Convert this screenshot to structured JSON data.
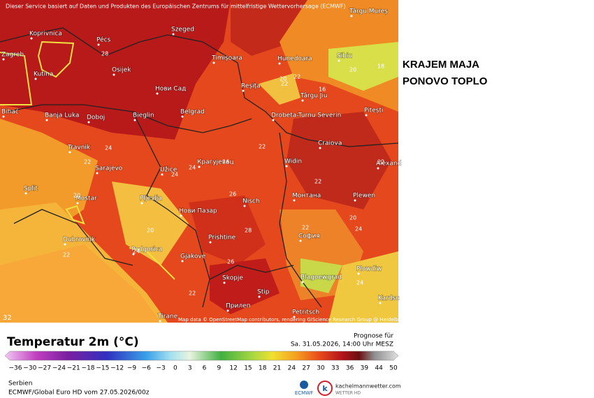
{
  "header": {
    "credit": "Dieser Service basiert auf Daten und Produkten des Europäischen Zentrums für mittelfristige Wettervorhersage (ECMWF)",
    "corner_number": "32"
  },
  "headline": [
    "KRAJEM MAJA",
    "PONOVO TOPLO"
  ],
  "map": {
    "cities": [
      "Târgu Mureș",
      "Koprivnica",
      "Pécs",
      "Szeged",
      "Zagreb",
      "Sibiu",
      "Kutina",
      "Osijek",
      "Timișoara",
      "Hunedoara",
      "Нови Сад",
      "Reșița",
      "Târgu Jiu",
      "Banja Luka",
      "Doboj",
      "Bieglin",
      "Belgrad",
      "Drobeta-Turnu Severin",
      "Pitești",
      "Craiova",
      "Travnik",
      "Sarajevo",
      "Užice",
      "Крагујевац",
      "Widin",
      "Alexand",
      "Split",
      "Mostar",
      "Pljevlja",
      "Нови Пазар",
      "Nisch",
      "Монтана",
      "Plewen",
      "Dubrovnik",
      "Podgorica",
      "Prishtine",
      "София",
      "Gjakove",
      "Plowdiw",
      "Skopje",
      "Blagoewgrad",
      "Stip",
      "Kardsc",
      "Прилеп",
      "Petritsch",
      "Tirane",
      "Bihać"
    ],
    "isotherms": [
      "28",
      "22",
      "20",
      "22",
      "16",
      "18",
      "20",
      "24",
      "22",
      "24",
      "22",
      "22",
      "20",
      "26",
      "26",
      "28",
      "24",
      "22",
      "20",
      "24",
      "24",
      "22",
      "24",
      "26",
      "22",
      "20",
      "22"
    ],
    "attribution": "Map data © OpenStreetMap contributors, rendering GIScience Research Group @ Heidelberg University"
  },
  "legend": {
    "title": "Temperatur 2m (°C)",
    "forecast_label": "Prognose für",
    "forecast_time": "Sa. 31.05.2026, 14:00 Uhr MESZ",
    "scale": [
      "−36",
      "−30",
      "−27",
      "−24",
      "−21",
      "−18",
      "−15",
      "−12",
      "−9",
      "−6",
      "−3",
      "0",
      "3",
      "6",
      "9",
      "12",
      "15",
      "18",
      "21",
      "24",
      "27",
      "30",
      "33",
      "36",
      "39",
      "44",
      "50"
    ]
  },
  "footer": {
    "region": "Serbien",
    "model": "ECMWF/Global Euro HD vom  27.05.2026/00z",
    "ecmwf": "ECMWF",
    "site": "kachelmannwetter.com",
    "site_sub": "WETTER HD"
  }
}
